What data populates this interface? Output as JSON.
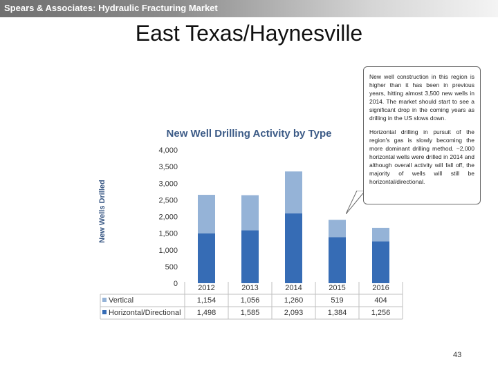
{
  "header": {
    "text": "Spears & Associates: Hydraulic Fracturing Market"
  },
  "slide_title": "East Texas/Haynesville",
  "callout": {
    "paragraph1": "New well construction in this region is higher than it has been in previous years, hitting almost 3,500 new wells in 2014. The market should start to see a significant drop in the coming years as drilling in the US slows down.",
    "paragraph2": "Horizontal drilling in pursuit of the region's gas is slowly becoming the more dominant drilling method. ~2,000 horizontal wells were drilled in 2014 and although overall activity will fall off, the majority of wells will still be horizontal/directional."
  },
  "page_number": "43",
  "chart_data": {
    "type": "bar",
    "stacked": true,
    "title": "New Well Drilling Activity by Type",
    "ylabel": "New Wells Drilled",
    "ylim": [
      0,
      4000
    ],
    "yticks": [
      "0",
      "500",
      "1,000",
      "1,500",
      "2,000",
      "2,500",
      "3,000",
      "3,500",
      "4,000"
    ],
    "categories": [
      "2012",
      "2013",
      "2014",
      "2015",
      "2016"
    ],
    "series": [
      {
        "name": "Vertical",
        "values": [
          1154,
          1056,
          1260,
          519,
          404
        ],
        "labels": [
          "1,154",
          "1,056",
          "1,260",
          "519",
          "404"
        ],
        "color": "#95b3d7"
      },
      {
        "name": "Horizontal/Directional",
        "values": [
          1498,
          1585,
          2093,
          1384,
          1256
        ],
        "labels": [
          "1,498",
          "1,585",
          "2,093",
          "1,384",
          "1,256"
        ],
        "color": "#366cb5"
      }
    ],
    "grid": false,
    "legend_placement": "data-table-left"
  }
}
